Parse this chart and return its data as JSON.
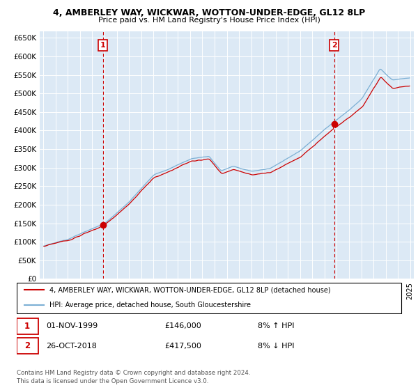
{
  "title_line1": "4, AMBERLEY WAY, WICKWAR, WOTTON-UNDER-EDGE, GL12 8LP",
  "title_line2": "Price paid vs. HM Land Registry's House Price Index (HPI)",
  "hpi_color": "#7bafd4",
  "price_color": "#cc0000",
  "bg_color": "#dce9f5",
  "marker1_year": 1999.83,
  "marker1_value": 146000,
  "marker2_year": 2018.79,
  "marker2_value": 417500,
  "legend_line1": "4, AMBERLEY WAY, WICKWAR, WOTTON-UNDER-EDGE, GL12 8LP (detached house)",
  "legend_line2": "HPI: Average price, detached house, South Gloucestershire",
  "footnote1": "Contains HM Land Registry data © Crown copyright and database right 2024.",
  "footnote2": "This data is licensed under the Open Government Licence v3.0.",
  "table_row1": [
    "1",
    "01-NOV-1999",
    "£146,000",
    "8% ↑ HPI"
  ],
  "table_row2": [
    "2",
    "26-OCT-2018",
    "£417,500",
    "8% ↓ HPI"
  ],
  "vline_color": "#cc0000",
  "ytick_labels": [
    "£0",
    "£50K",
    "£100K",
    "£150K",
    "£200K",
    "£250K",
    "£300K",
    "£350K",
    "£400K",
    "£450K",
    "£500K",
    "£550K",
    "£600K",
    "£650K"
  ],
  "yticks": [
    0,
    50000,
    100000,
    150000,
    200000,
    250000,
    300000,
    350000,
    400000,
    450000,
    500000,
    550000,
    600000,
    650000
  ]
}
